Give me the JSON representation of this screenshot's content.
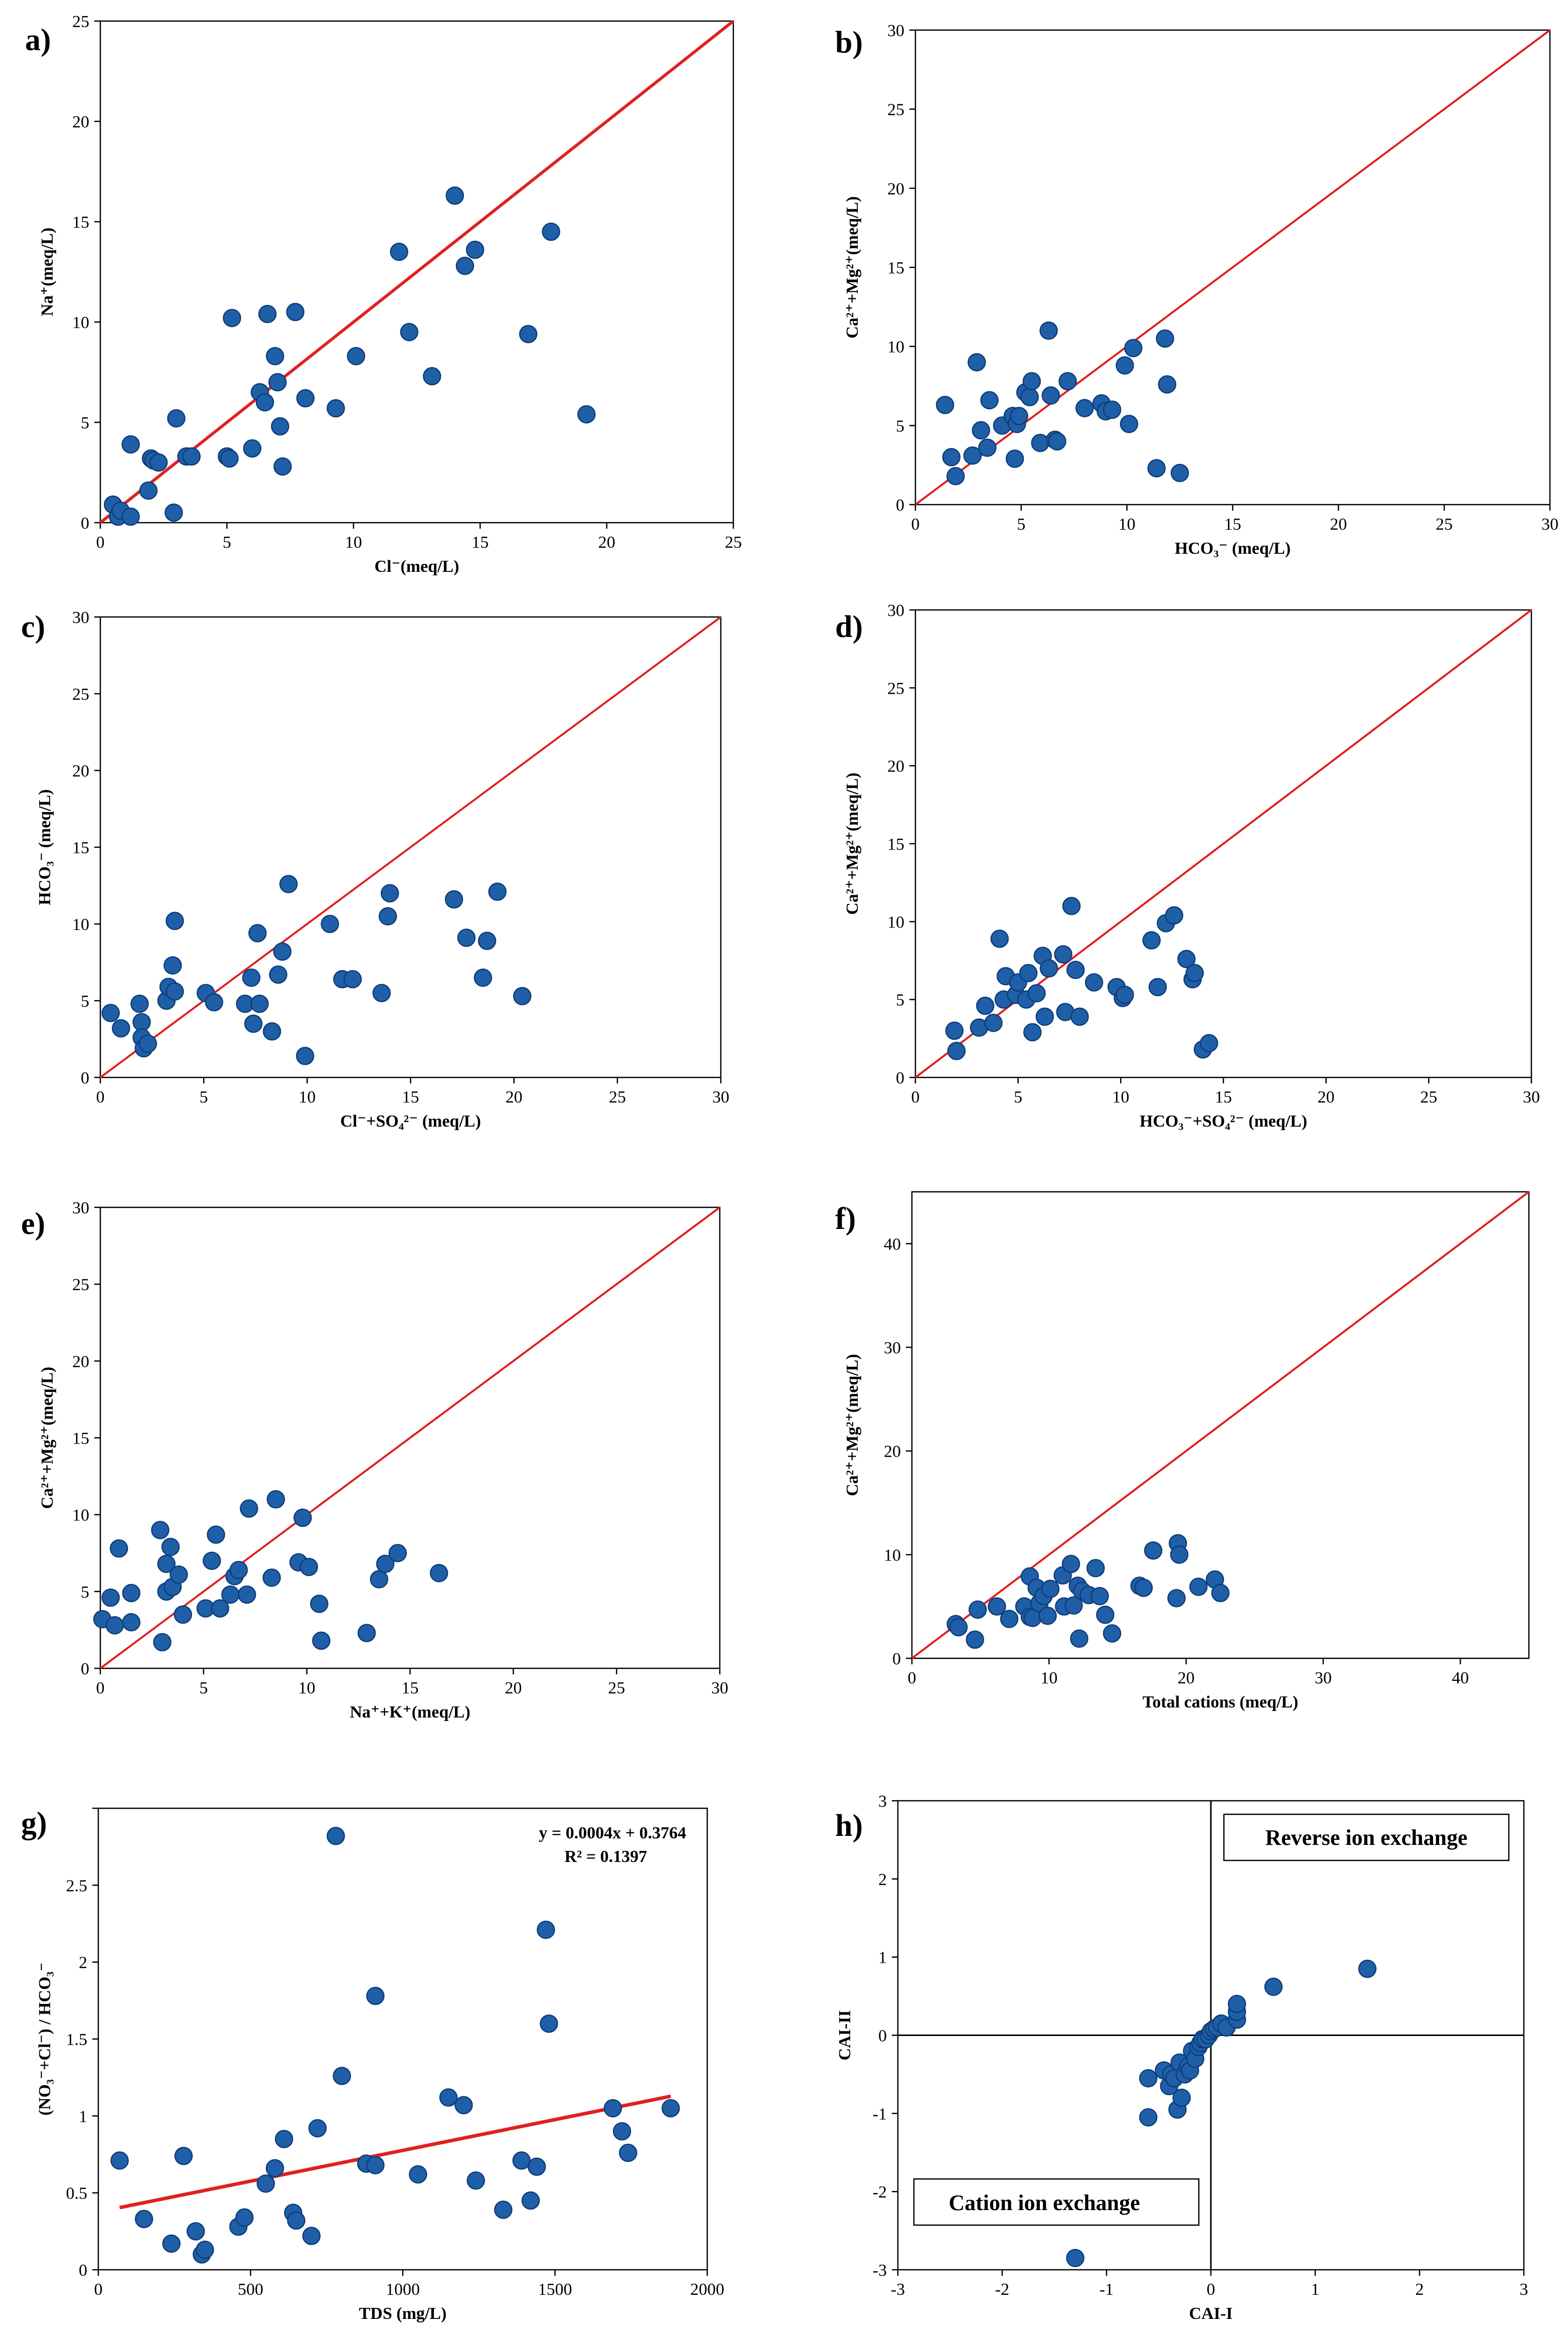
{
  "chart_data": [
    {
      "panel": "a",
      "label": "a)",
      "type": "scatter",
      "xlabel": "Cl⁻(meq/L)",
      "ylabel": "Na⁺(meq/L)",
      "xlim": [
        0,
        25
      ],
      "ylim": [
        0,
        25
      ],
      "xticks": [
        0,
        5,
        10,
        15,
        20,
        25
      ],
      "yticks": [
        0,
        5,
        10,
        15,
        20,
        25
      ],
      "x": [
        0.5,
        0.7,
        0.8,
        1.2,
        1.2,
        1.9,
        2.0,
        2.1,
        2.3,
        2.9,
        3.0,
        3.4,
        3.6,
        5.0,
        5.1,
        5.2,
        6.0,
        6.3,
        6.5,
        6.6,
        6.9,
        7.0,
        7.1,
        7.2,
        7.7,
        8.1,
        9.3,
        10.1,
        11.8,
        12.2,
        13.1,
        14.0,
        14.4,
        14.8,
        16.9,
        17.8,
        19.2
      ],
      "y": [
        0.9,
        0.3,
        0.6,
        3.9,
        0.3,
        1.6,
        3.2,
        3.1,
        3.0,
        0.5,
        5.2,
        3.3,
        3.3,
        3.3,
        3.2,
        10.2,
        3.7,
        6.5,
        6.0,
        10.4,
        8.3,
        7.0,
        4.8,
        2.8,
        10.5,
        6.2,
        5.7,
        8.3,
        13.5,
        9.5,
        7.3,
        16.3,
        12.8,
        13.6,
        9.4,
        14.5,
        5.4
      ],
      "series": [
        {
          "name": "1:1 line",
          "type": "line",
          "x": [
            0,
            25
          ],
          "y": [
            0,
            25
          ]
        }
      ]
    },
    {
      "panel": "b",
      "label": "b)",
      "type": "scatter",
      "xlabel": "HCO₃⁻ (meq/L)",
      "ylabel": "Ca²⁺+Mg²⁺(meq/L)",
      "xlim": [
        0,
        30
      ],
      "ylim": [
        0,
        30
      ],
      "xticks": [
        0,
        5,
        10,
        15,
        20,
        25,
        30
      ],
      "yticks": [
        0,
        5,
        10,
        15,
        20,
        25,
        30
      ],
      "x": [
        1.4,
        1.7,
        1.9,
        2.7,
        2.9,
        3.1,
        3.4,
        3.5,
        4.1,
        4.6,
        4.7,
        4.8,
        4.9,
        5.2,
        5.4,
        5.5,
        5.9,
        6.3,
        6.4,
        6.6,
        6.7,
        7.2,
        8.0,
        8.8,
        9.0,
        9.3,
        9.9,
        10.1,
        10.3,
        11.4,
        11.8,
        11.9,
        12.5
      ],
      "y": [
        6.3,
        3.0,
        1.8,
        3.1,
        9.0,
        4.7,
        3.6,
        6.6,
        5.0,
        5.6,
        2.9,
        5.1,
        5.6,
        7.1,
        6.8,
        7.8,
        3.9,
        11.0,
        6.9,
        4.1,
        4.0,
        7.8,
        6.1,
        6.4,
        5.9,
        6.0,
        8.8,
        5.1,
        9.9,
        2.3,
        10.5,
        7.6,
        2.0
      ],
      "series": [
        {
          "name": "1:1 line",
          "type": "line",
          "x": [
            0,
            30
          ],
          "y": [
            0,
            30
          ]
        }
      ]
    },
    {
      "panel": "c",
      "label": "c)",
      "type": "scatter",
      "xlabel": "Cl⁻+SO₄²⁻ (meq/L)",
      "ylabel": "HCO₃⁻ (meq/L)",
      "xlim": [
        0,
        30
      ],
      "ylim": [
        0,
        30
      ],
      "xticks": [
        0,
        5,
        10,
        15,
        20,
        25,
        30
      ],
      "yticks": [
        0,
        5,
        10,
        15,
        20,
        25,
        30
      ],
      "x": [
        0.5,
        1.0,
        1.9,
        2.0,
        2.0,
        2.1,
        2.3,
        3.2,
        3.3,
        3.5,
        3.6,
        3.6,
        5.1,
        5.5,
        7.0,
        7.3,
        7.4,
        7.6,
        7.7,
        8.3,
        8.6,
        8.8,
        9.1,
        9.9,
        11.1,
        11.7,
        12.2,
        13.6,
        13.9,
        14.0,
        17.1,
        17.7,
        18.5,
        18.7,
        19.2,
        20.4
      ],
      "y": [
        4.2,
        3.2,
        4.8,
        3.6,
        2.6,
        1.9,
        2.2,
        5.0,
        5.9,
        7.3,
        10.2,
        5.6,
        5.5,
        4.9,
        4.8,
        6.5,
        3.5,
        9.4,
        4.8,
        3.0,
        6.7,
        8.2,
        12.6,
        1.4,
        10.0,
        6.4,
        6.4,
        5.5,
        10.5,
        12.0,
        11.6,
        9.1,
        6.5,
        8.9,
        12.1,
        5.3
      ],
      "series": [
        {
          "name": "1:1 line",
          "type": "line",
          "x": [
            0,
            30
          ],
          "y": [
            0,
            30
          ]
        }
      ]
    },
    {
      "panel": "d",
      "label": "d)",
      "type": "scatter",
      "xlabel": "HCO₃⁻+SO₄²⁻ (meq/L)",
      "ylabel": "Ca²⁺+Mg²⁺(meq/L)",
      "xlim": [
        0,
        30
      ],
      "ylim": [
        0,
        30
      ],
      "xticks": [
        0,
        5,
        10,
        15,
        20,
        25,
        30
      ],
      "yticks": [
        0,
        5,
        10,
        15,
        20,
        25,
        30
      ],
      "x": [
        1.9,
        2.0,
        3.1,
        3.4,
        3.8,
        4.1,
        4.3,
        4.4,
        4.9,
        5.0,
        5.4,
        5.5,
        5.7,
        5.9,
        6.2,
        6.3,
        6.5,
        7.2,
        7.3,
        7.6,
        7.8,
        8.0,
        8.7,
        9.8,
        10.1,
        10.2,
        11.5,
        11.8,
        12.2,
        12.6,
        13.2,
        13.5,
        13.6,
        14.0,
        14.3
      ],
      "y": [
        3.0,
        1.7,
        3.2,
        4.6,
        3.5,
        8.9,
        5.0,
        6.5,
        5.3,
        6.1,
        5.0,
        6.7,
        2.9,
        5.4,
        7.8,
        3.9,
        7.0,
        7.9,
        4.2,
        11.0,
        6.9,
        3.9,
        6.1,
        5.8,
        5.1,
        5.3,
        8.8,
        5.8,
        9.9,
        10.4,
        7.6,
        6.3,
        6.7,
        1.8,
        2.2
      ],
      "series": [
        {
          "name": "1:1 line",
          "type": "line",
          "x": [
            0,
            30
          ],
          "y": [
            0,
            30
          ]
        }
      ]
    },
    {
      "panel": "e",
      "label": "e)",
      "type": "scatter",
      "xlabel": "Na⁺+K⁺(meq/L)",
      "ylabel": "Ca²⁺+Mg²⁺(meq/L)",
      "xlim": [
        0,
        30
      ],
      "ylim": [
        0,
        30
      ],
      "xticks": [
        0,
        5,
        10,
        15,
        20,
        25,
        30
      ],
      "yticks": [
        0,
        5,
        10,
        15,
        20,
        25,
        30
      ],
      "x": [
        0.1,
        0.5,
        0.7,
        0.9,
        1.5,
        1.5,
        2.9,
        3.0,
        3.2,
        3.2,
        3.4,
        3.5,
        3.8,
        4.0,
        5.1,
        5.4,
        5.6,
        5.8,
        6.3,
        6.5,
        6.7,
        7.1,
        7.2,
        8.3,
        8.5,
        9.6,
        9.8,
        10.1,
        10.6,
        10.7,
        12.9,
        13.5,
        13.8,
        14.4,
        16.4
      ],
      "y": [
        3.2,
        4.6,
        2.8,
        7.8,
        3.0,
        4.9,
        9.0,
        1.7,
        6.8,
        5.0,
        7.9,
        5.3,
        6.1,
        3.5,
        3.9,
        7.0,
        8.7,
        3.9,
        4.8,
        6.0,
        6.4,
        4.8,
        10.4,
        5.9,
        11.0,
        6.9,
        9.8,
        6.6,
        4.2,
        1.8,
        2.3,
        5.8,
        6.8,
        7.5,
        6.2
      ],
      "series": [
        {
          "name": "1:1 line",
          "type": "line",
          "x": [
            0,
            30
          ],
          "y": [
            0,
            30
          ]
        }
      ]
    },
    {
      "panel": "f",
      "label": "f)",
      "type": "scatter",
      "xlabel": "Total cations (meq/L)",
      "ylabel": "Ca²⁺+Mg²⁺(meq/L)",
      "xlim": [
        0,
        45
      ],
      "ylim": [
        0,
        45
      ],
      "xticks": [
        0,
        10,
        20,
        30,
        40
      ],
      "yticks": [
        0,
        10,
        20,
        30,
        40
      ],
      "x": [
        3.2,
        3.4,
        4.6,
        4.8,
        6.2,
        7.1,
        8.2,
        8.6,
        8.6,
        8.8,
        9.1,
        9.3,
        9.6,
        9.9,
        10.1,
        11.0,
        11.1,
        11.6,
        11.8,
        12.1,
        12.2,
        12.4,
        12.9,
        13.4,
        13.7,
        14.1,
        14.6,
        16.6,
        16.9,
        17.6,
        19.3,
        19.4,
        19.5,
        20.9,
        22.1,
        22.5
      ],
      "y": [
        3.3,
        3.0,
        1.8,
        4.7,
        5.0,
        3.8,
        5.0,
        7.9,
        4.0,
        3.9,
        6.8,
        5.3,
        6.0,
        4.1,
        6.7,
        8.0,
        5.0,
        9.1,
        5.1,
        7.0,
        1.9,
        6.5,
        6.1,
        8.7,
        6.0,
        4.2,
        2.4,
        7.0,
        6.8,
        10.4,
        5.8,
        11.1,
        10.0,
        6.9,
        7.6,
        6.3
      ],
      "series": [
        {
          "name": "1:1 line",
          "type": "line",
          "x": [
            0,
            45
          ],
          "y": [
            0,
            45
          ]
        }
      ]
    },
    {
      "panel": "g",
      "label": "g)",
      "type": "scatter",
      "xlabel": "TDS (mg/L)",
      "ylabel": "(NO₃⁻+Cl⁻) / HCO₃⁻",
      "xlim": [
        0,
        2000
      ],
      "ylim": [
        0,
        3
      ],
      "xticks": [
        0,
        500,
        1000,
        1500,
        2000
      ],
      "yticks": [
        0,
        0.5,
        1,
        1.5,
        2,
        2.5,
        3
      ],
      "ytick_labels": [
        "0",
        "0.5",
        "1",
        "1.5",
        "2",
        "2.5",
        ""
      ],
      "x": [
        70,
        150,
        240,
        280,
        320,
        340,
        350,
        460,
        480,
        550,
        580,
        610,
        640,
        650,
        700,
        720,
        780,
        800,
        880,
        910,
        910,
        1050,
        1150,
        1200,
        1240,
        1330,
        1390,
        1420,
        1440,
        1470,
        1480,
        1690,
        1720,
        1740,
        1880
      ],
      "y": [
        0.71,
        0.33,
        0.17,
        0.74,
        0.25,
        0.1,
        0.13,
        0.28,
        0.34,
        0.56,
        0.66,
        0.85,
        0.37,
        0.32,
        0.22,
        0.92,
        2.82,
        1.26,
        0.69,
        0.68,
        1.78,
        0.62,
        1.12,
        1.07,
        0.58,
        0.39,
        0.71,
        0.45,
        0.67,
        2.21,
        1.6,
        1.05,
        0.9,
        0.76,
        1.05
      ],
      "series": [
        {
          "name": "trend",
          "type": "line",
          "x": [
            70,
            1880
          ],
          "y": [
            0.404,
            1.128
          ]
        }
      ],
      "annotations": [
        "y = 0.0004x + 0.3764",
        "R² = 0.1397"
      ]
    },
    {
      "panel": "h",
      "label": "h)",
      "type": "scatter",
      "xlabel": "CAI-I",
      "ylabel": "CAI-II",
      "xlim": [
        -3,
        3
      ],
      "ylim": [
        -3,
        3
      ],
      "xticks": [
        -3,
        -2,
        -1,
        0,
        1,
        2,
        3
      ],
      "yticks": [
        -3,
        -2,
        -1,
        0,
        1,
        2,
        3
      ],
      "x": [
        -1.3,
        -0.6,
        -0.6,
        -0.45,
        -0.4,
        -0.38,
        -0.35,
        -0.32,
        -0.3,
        -0.28,
        -0.25,
        -0.22,
        -0.2,
        -0.18,
        -0.15,
        -0.12,
        -0.1,
        -0.08,
        -0.05,
        -0.02,
        0.0,
        0.03,
        0.06,
        0.1,
        0.15,
        0.25,
        0.25,
        0.25,
        0.6,
        1.5
      ],
      "y": [
        -2.85,
        -1.05,
        -0.55,
        -0.45,
        -0.65,
        -0.5,
        -0.55,
        -0.95,
        -0.35,
        -0.8,
        -0.5,
        -0.4,
        -0.45,
        -0.2,
        -0.3,
        -0.15,
        -0.1,
        -0.05,
        -0.05,
        0.0,
        0.05,
        0.08,
        0.1,
        0.15,
        0.1,
        0.2,
        0.3,
        0.4,
        0.62,
        0.85
      ],
      "annotations": [
        "Reverse ion exchange",
        "Cation ion exchange"
      ]
    }
  ],
  "colors": {
    "point": "#1f5fa8",
    "point_edge": "#0e3d78",
    "line": "#e02020",
    "axis": "#000000"
  }
}
